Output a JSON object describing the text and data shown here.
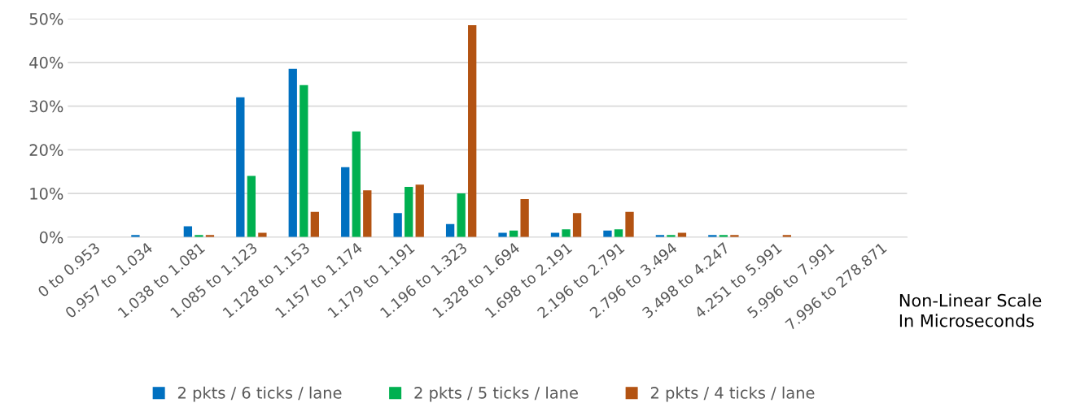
{
  "chart_data": {
    "type": "bar",
    "xlabel": "Non-Linear Scale\nIn Microseconds",
    "categories": [
      "0 to 0.953",
      "0.957 to 1.034",
      "1.038 to 1.081",
      "1.085 to 1.123",
      "1.128 to 1.153",
      "1.157 to 1.174",
      "1.179 to 1.191",
      "1.196 to 1.323",
      "1.328 to 1.694",
      "1.698 to 2.191",
      "2.196 to 2.791",
      "2.796 to 3.494",
      "3.498 to 4.247",
      "4.251 to 5.991",
      "5.996 to 7.991",
      "7.996 to 278.871"
    ],
    "series": [
      {
        "name": "2 pkts / 6 ticks / lane",
        "color": "#0070c0",
        "values": [
          0,
          0.5,
          2.5,
          32,
          38.5,
          16,
          5.5,
          3,
          1,
          1,
          1.5,
          0.5,
          0.5,
          0,
          0,
          0
        ]
      },
      {
        "name": "2 pkts / 5 ticks / lane",
        "color": "#00b050",
        "values": [
          0,
          0,
          0.5,
          14,
          34.8,
          24.2,
          11.5,
          10,
          1.5,
          1.8,
          1.8,
          0.5,
          0.5,
          0,
          0,
          0
        ]
      },
      {
        "name": "2 pkts / 4 ticks / lane",
        "color": "#b35312",
        "values": [
          0,
          0,
          0.5,
          1,
          5.8,
          10.7,
          12,
          48.5,
          8.7,
          5.5,
          5.8,
          1,
          0.5,
          0.5,
          0,
          0
        ]
      }
    ],
    "ylim": [
      0,
      50
    ],
    "yticks": [
      {
        "value": 0,
        "label": "0%"
      },
      {
        "value": 10,
        "label": "10%"
      },
      {
        "value": 20,
        "label": "20%"
      },
      {
        "value": 30,
        "label": "30%"
      },
      {
        "value": 40,
        "label": "40%"
      },
      {
        "value": 50,
        "label": "50%"
      }
    ],
    "grid": "y",
    "legend": "bottom"
  }
}
